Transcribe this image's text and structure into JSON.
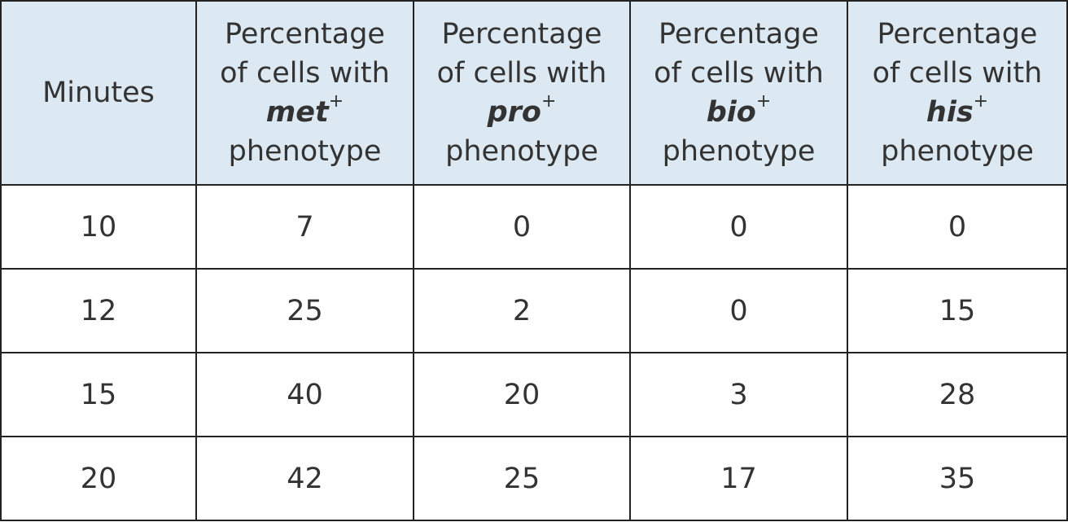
{
  "table": {
    "columns": [
      {
        "label": "Minutes"
      },
      {
        "line1": "Percentage",
        "line2": "of cells with",
        "gene": "met",
        "sup": "+",
        "suffix": "phenotype"
      },
      {
        "line1": "Percentage",
        "line2": "of cells with",
        "gene": "pro",
        "sup": "+",
        "suffix": "phenotype"
      },
      {
        "line1": "Percentage",
        "line2": "of cells with",
        "gene": "bio",
        "sup": "+",
        "suffix": "phenotype"
      },
      {
        "line1": "Percentage",
        "line2": "of cells with",
        "gene": "his",
        "sup": "+",
        "suffix": "phenotype"
      }
    ],
    "rows": [
      [
        10,
        7,
        0,
        0,
        0
      ],
      [
        12,
        25,
        2,
        0,
        15
      ],
      [
        15,
        40,
        20,
        3,
        28
      ],
      [
        20,
        42,
        25,
        17,
        35
      ]
    ]
  }
}
